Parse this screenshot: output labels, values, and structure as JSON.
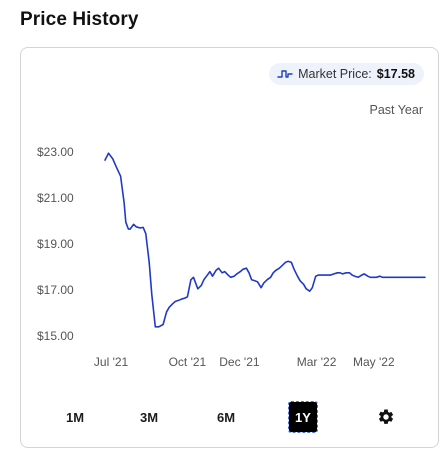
{
  "section": {
    "title": "Price History"
  },
  "market": {
    "label": "Market Price:",
    "value": "$17.58",
    "icon": "price-step-icon"
  },
  "range_label": "Past Year",
  "periods": [
    {
      "label": "1M",
      "active": false
    },
    {
      "label": "3M",
      "active": false
    },
    {
      "label": "6M",
      "active": false
    },
    {
      "label": "1Y",
      "active": true
    }
  ],
  "settings_icon": "gear-icon",
  "colors": {
    "line": "#2139c7",
    "pill_bg": "#eef3fb",
    "active_bg": "#000000"
  },
  "chart_data": {
    "type": "line",
    "title": "",
    "xlabel": "",
    "ylabel": "",
    "ylim": [
      15.0,
      23.0
    ],
    "xlim": [
      "2021-06-26",
      "2022-06-30"
    ],
    "y_ticks": [
      "$15.00",
      "$17.00",
      "$19.00",
      "$21.00",
      "$23.00"
    ],
    "y_tick_values": [
      15,
      17,
      19,
      21,
      23
    ],
    "x_ticks": [
      "Jul '21",
      "Oct '21",
      "Dec '21",
      "Mar '22",
      "May '22"
    ],
    "x_tick_dates": [
      "2021-07-03",
      "2021-09-29",
      "2021-11-28",
      "2022-02-25",
      "2022-05-02"
    ],
    "grid": false,
    "legend": "none",
    "series": [
      {
        "x": [
          "2021-06-26",
          "2021-06-30",
          "2021-07-05",
          "2021-07-09",
          "2021-07-14",
          "2021-07-18",
          "2021-07-20",
          "2021-07-23",
          "2021-07-25",
          "2021-07-29",
          "2021-08-01",
          "2021-08-05",
          "2021-08-09",
          "2021-08-12",
          "2021-08-16",
          "2021-08-19",
          "2021-08-23",
          "2021-08-27",
          "2021-09-01",
          "2021-09-05",
          "2021-09-08",
          "2021-09-12",
          "2021-09-15",
          "2021-09-19",
          "2021-09-22",
          "2021-09-26",
          "2021-09-29",
          "2021-10-03",
          "2021-10-06",
          "2021-10-11",
          "2021-10-15",
          "2021-10-18",
          "2021-10-21",
          "2021-10-25",
          "2021-10-28",
          "2021-11-01",
          "2021-11-04",
          "2021-11-08",
          "2021-11-11",
          "2021-11-15",
          "2021-11-18",
          "2021-11-22",
          "2021-11-25",
          "2021-11-29",
          "2021-12-02",
          "2021-12-06",
          "2021-12-09",
          "2021-12-12",
          "2021-12-16",
          "2021-12-19",
          "2021-12-23",
          "2021-12-26",
          "2021-12-30",
          "2022-01-03",
          "2022-01-06",
          "2022-01-09",
          "2022-01-13",
          "2022-01-16",
          "2022-01-20",
          "2022-01-23",
          "2022-01-27",
          "2022-01-30",
          "2022-02-03",
          "2022-02-06",
          "2022-02-10",
          "2022-02-13",
          "2022-02-17",
          "2022-02-20",
          "2022-02-24",
          "2022-02-27",
          "2022-03-03",
          "2022-03-06",
          "2022-03-10",
          "2022-03-13",
          "2022-03-17",
          "2022-03-21",
          "2022-03-24",
          "2022-03-27",
          "2022-03-31",
          "2022-04-04",
          "2022-04-07",
          "2022-04-10",
          "2022-04-14",
          "2022-04-18",
          "2022-04-21",
          "2022-04-25",
          "2022-04-28",
          "2022-05-02",
          "2022-05-05",
          "2022-05-09",
          "2022-05-12",
          "2022-05-16",
          "2022-05-19",
          "2022-05-23",
          "2022-05-26",
          "2022-05-30",
          "2022-06-02",
          "2022-06-06",
          "2022-06-09",
          "2022-06-13",
          "2022-06-16",
          "2022-06-20",
          "2022-06-24",
          "2022-06-30"
        ],
        "values": [
          22.65,
          22.95,
          22.7,
          22.35,
          21.95,
          20.8,
          19.95,
          19.65,
          19.65,
          19.85,
          19.75,
          19.7,
          19.72,
          19.45,
          18.2,
          16.8,
          15.4,
          15.4,
          15.5,
          16.05,
          16.25,
          16.4,
          16.5,
          16.55,
          16.6,
          16.65,
          16.7,
          17.45,
          17.55,
          17.05,
          17.2,
          17.45,
          17.6,
          17.8,
          17.6,
          17.85,
          17.95,
          17.75,
          17.8,
          17.65,
          17.55,
          17.6,
          17.7,
          17.8,
          17.9,
          17.95,
          17.75,
          17.45,
          17.4,
          17.35,
          17.1,
          17.3,
          17.45,
          17.55,
          17.75,
          17.85,
          17.95,
          18.05,
          18.2,
          18.25,
          18.2,
          17.9,
          17.6,
          17.4,
          17.25,
          17.05,
          16.95,
          17.1,
          17.6,
          17.65,
          17.65,
          17.65,
          17.65,
          17.65,
          17.7,
          17.75,
          17.75,
          17.7,
          17.75,
          17.75,
          17.65,
          17.6,
          17.55,
          17.65,
          17.7,
          17.6,
          17.55,
          17.55,
          17.55,
          17.6,
          17.55,
          17.55,
          17.55,
          17.55,
          17.55,
          17.55,
          17.55,
          17.55,
          17.55,
          17.55,
          17.55,
          17.55,
          17.55,
          17.55
        ]
      }
    ]
  }
}
